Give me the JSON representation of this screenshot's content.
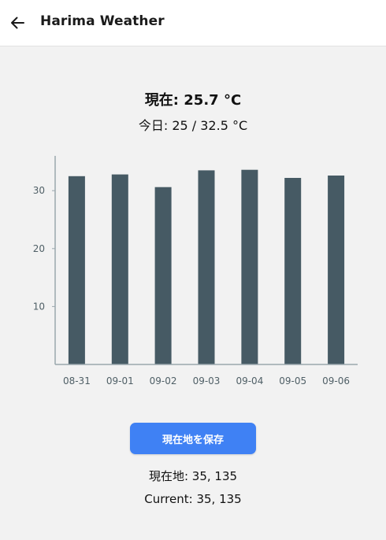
{
  "appbar": {
    "title": "Harima Weather",
    "back_icon": "arrow-left-icon"
  },
  "summary": {
    "current": "現在: 25.7 °C",
    "today": "今日: 25 / 32.5 °C"
  },
  "chart_data": {
    "type": "bar",
    "categories": [
      "08-31",
      "09-01",
      "09-02",
      "09-03",
      "09-04",
      "09-05",
      "09-06"
    ],
    "values": [
      32.5,
      32.8,
      30.6,
      33.5,
      33.6,
      32.2,
      32.6
    ],
    "yticks": [
      "10",
      "20",
      "30"
    ],
    "ylim": [
      0,
      36
    ],
    "grid": false,
    "bar_color": "#465a64",
    "axis_color": "#9aa7ad"
  },
  "actions": {
    "save_label": "現在地を保存"
  },
  "location": {
    "ja": "現在地: 35, 135",
    "en": "Current: 35, 135"
  },
  "colors": {
    "accent": "#3f81f4",
    "background": "#f2f2f2"
  }
}
